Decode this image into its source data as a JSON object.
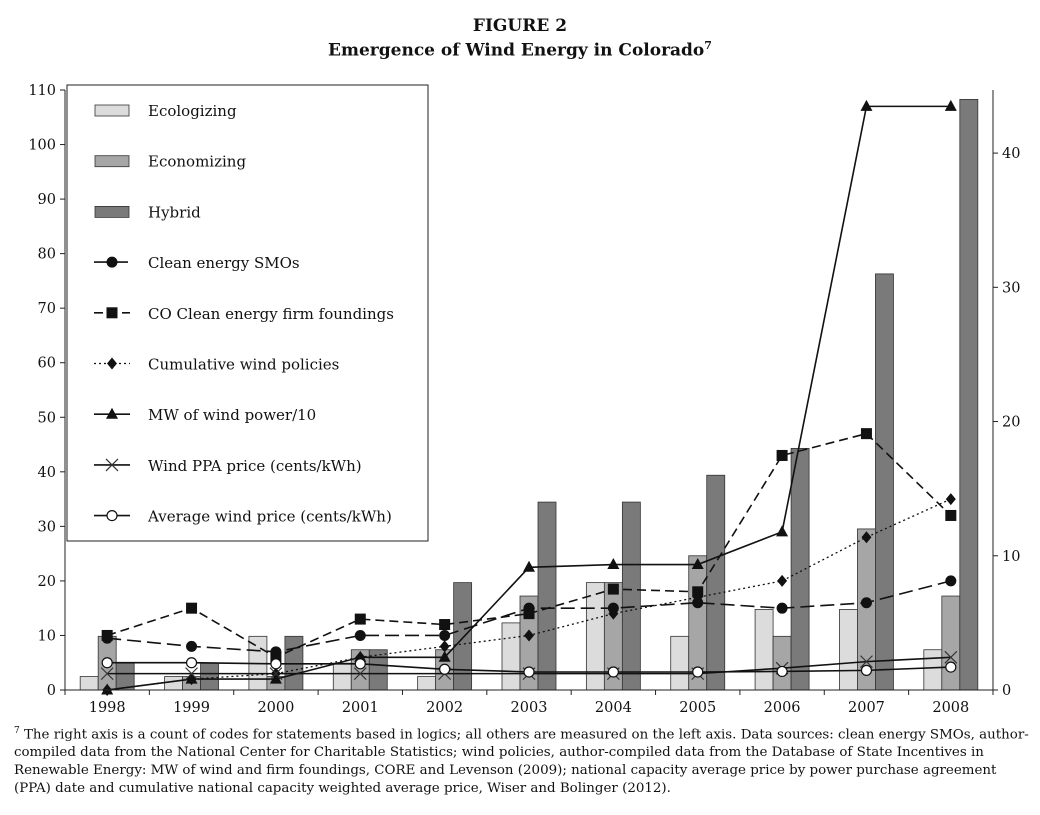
{
  "figure": {
    "label": "FIGURE 2",
    "title": "Emergence of Wind Energy in Colorado",
    "title_note_mark": "7"
  },
  "footnote": {
    "mark": "7",
    "text": "The right axis is a count of codes for statements based in logics; all others are measured on the left axis. Data sources: clean energy SMOs, author-compiled data from the National Center for Charitable Statistics; wind policies, author-compiled data from the Database of State Incentives in Renewable Energy: MW of wind and firm foundings, CORE and Levenson (2009); national capacity average price by power purchase agreement (PPA) date and cumulative national capacity weighted average price, Wiser and Bolinger (2012)."
  },
  "chart_data": {
    "type": "bar",
    "categories": [
      "1998",
      "1999",
      "2000",
      "2001",
      "2002",
      "2003",
      "2004",
      "2005",
      "2006",
      "2007",
      "2008"
    ],
    "left_axis": {
      "min": 0,
      "max": 110,
      "ticks": [
        0,
        10,
        20,
        30,
        40,
        50,
        60,
        70,
        80,
        90,
        100,
        110
      ]
    },
    "right_axis": {
      "min": 0,
      "max": 44.7,
      "ticks": [
        0,
        10,
        20,
        30,
        40
      ]
    },
    "legend_position": "top-left",
    "grid": false,
    "bar_series": [
      {
        "name": "Ecologizing",
        "axis": "right",
        "color": "#dcdcdc",
        "values": [
          1,
          1,
          4,
          2,
          1,
          5,
          8,
          4,
          6,
          6,
          3
        ]
      },
      {
        "name": "Economizing",
        "axis": "right",
        "color": "#a6a6a6",
        "values": [
          4,
          1,
          1,
          3,
          3,
          7,
          8,
          10,
          4,
          12,
          7
        ]
      },
      {
        "name": "Hybrid",
        "axis": "right",
        "color": "#7a7a7a",
        "values": [
          2,
          2,
          4,
          3,
          8,
          14,
          14,
          16,
          18,
          31,
          44
        ]
      }
    ],
    "line_series": [
      {
        "name": "Clean energy SMOs",
        "axis": "left",
        "marker": "circle",
        "dash": "long",
        "values": [
          9.5,
          8,
          7,
          10,
          10,
          15,
          15,
          16,
          15,
          16,
          20
        ]
      },
      {
        "name": "CO Clean energy firm foundings",
        "axis": "left",
        "marker": "square",
        "dash": "medium",
        "values": [
          10,
          15,
          6,
          13,
          12,
          14,
          18.5,
          18,
          43,
          47,
          32
        ]
      },
      {
        "name": "Cumulative wind policies",
        "axis": "left",
        "marker": "diamond",
        "dash": "dotted",
        "values": [
          0,
          2,
          3,
          6,
          8,
          10,
          14,
          17,
          20,
          28,
          35
        ]
      },
      {
        "name": "MW of wind power/10",
        "axis": "left",
        "marker": "triangle",
        "dash": "solid",
        "values": [
          0,
          2,
          2,
          6,
          6,
          22.5,
          23,
          23,
          29,
          107,
          107
        ]
      },
      {
        "name": "Wind PPA price (cents/kWh)",
        "axis": "left",
        "marker": "x",
        "dash": "solid",
        "values": [
          3,
          3,
          3,
          3,
          3,
          3,
          3,
          3,
          4,
          5.2,
          6
        ]
      },
      {
        "name": "Average wind price (cents/kWh)",
        "axis": "left",
        "marker": "open-circle",
        "dash": "solid",
        "values": [
          5,
          5,
          4.8,
          4.8,
          3.8,
          3.3,
          3.3,
          3.3,
          3.4,
          3.6,
          4.2
        ]
      }
    ]
  }
}
